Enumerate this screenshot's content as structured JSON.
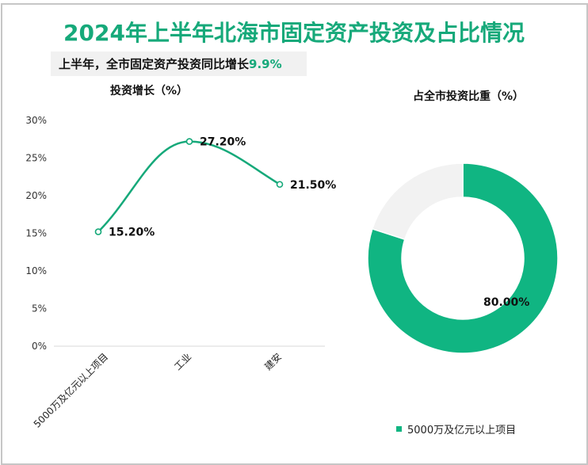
{
  "header": {
    "title": "2024年上半年北海市固定资产投资及占比情况",
    "subtitle_prefix": "上半年，全市固定资产投资同比增长",
    "subtitle_value": "9.9%"
  },
  "colors": {
    "accent": "#16a97a",
    "line": "#16a97a",
    "donut_main": "#10b582",
    "donut_rest": "#f2f2f2",
    "border": "#c6c6c6",
    "subtitle_bg": "#f1f1f1"
  },
  "chart_data": [
    {
      "type": "line",
      "title": "投资增长（%）",
      "xlabel": "",
      "ylabel": "",
      "categories": [
        "5000万及亿元以上项目",
        "工业",
        "建安"
      ],
      "values": [
        15.2,
        27.2,
        21.5
      ],
      "data_labels": [
        "15.20%",
        "27.20%",
        "21.50%"
      ],
      "yticks": [
        "0%",
        "5%",
        "10%",
        "15%",
        "20%",
        "25%",
        "30%"
      ],
      "ylim": [
        0,
        30
      ],
      "grid": false,
      "smooth": true,
      "x_label_rotation": -45
    },
    {
      "type": "pie",
      "donut": true,
      "title": "占全市投资比重（%）",
      "categories": [
        "5000万及亿元以上项目",
        "其他"
      ],
      "values": [
        80.0,
        20.0
      ],
      "data_labels": [
        "80.00%",
        ""
      ],
      "legend": [
        "5000万及亿元以上项目"
      ],
      "legend_position": "bottom"
    }
  ]
}
